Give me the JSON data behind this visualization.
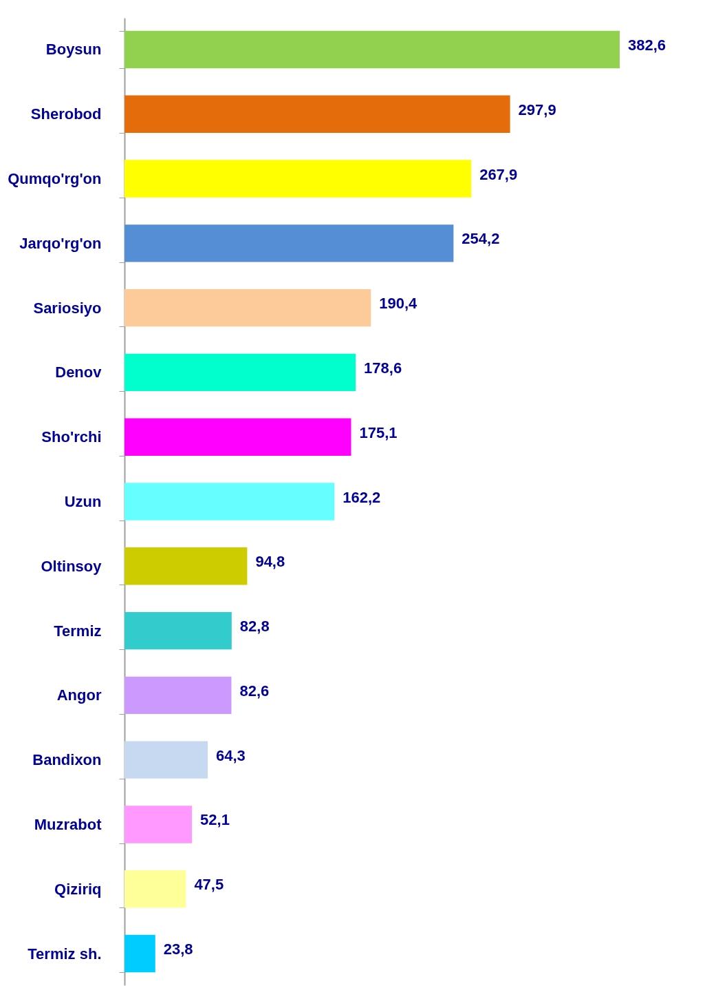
{
  "chart_data": {
    "type": "bar",
    "orientation": "horizontal",
    "categories": [
      "Boysun",
      "Sherobod",
      "Qumqo'rg'on",
      "Jarqo'rg'on",
      "Sariosiyo",
      "Denov",
      "Sho'rchi",
      "Uzun",
      "Oltinsoy",
      "Termiz",
      "Angor",
      "Bandixon",
      "Muzrabot",
      "Qiziriq",
      "Termiz sh."
    ],
    "values": [
      382.6,
      297.9,
      267.9,
      254.2,
      190.4,
      178.6,
      175.1,
      162.2,
      94.8,
      82.8,
      82.6,
      64.3,
      52.1,
      47.5,
      23.8
    ],
    "value_labels": [
      "382,6",
      "297,9",
      "267,9",
      "254,2",
      "190,4",
      "178,6",
      "175,1",
      "162,2",
      "94,8",
      "82,8",
      "82,6",
      "64,3",
      "52,1",
      "47,5",
      "23,8"
    ],
    "colors": [
      "#92d050",
      "#e46c0a",
      "#ffff00",
      "#558ed5",
      "#fccb99",
      "#00ffcc",
      "#ff00ff",
      "#66ffff",
      "#cccc00",
      "#33cccc",
      "#cc99ff",
      "#c6d9f1",
      "#ff99ff",
      "#ffff99",
      "#00ccff"
    ],
    "grid": false,
    "legend": false
  }
}
